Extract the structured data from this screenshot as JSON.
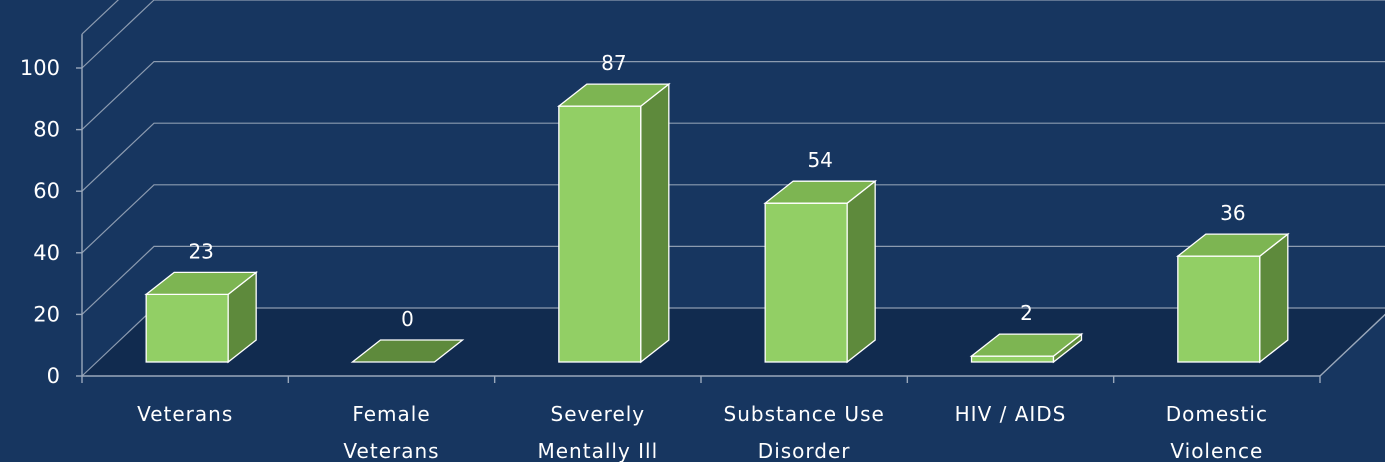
{
  "chart_data": {
    "type": "bar",
    "categories": [
      [
        "Veterans"
      ],
      [
        "Female",
        "Veterans"
      ],
      [
        "Severely",
        "Mentally Ill"
      ],
      [
        "Substance Use",
        "Disorder"
      ],
      [
        "HIV / AIDS"
      ],
      [
        "Domestic",
        "Violence"
      ]
    ],
    "values": [
      23,
      0,
      87,
      54,
      2,
      36
    ],
    "data_labels": [
      "23",
      "0",
      "87",
      "54",
      "2",
      "36"
    ],
    "ylim": [
      0,
      100
    ],
    "yticks": [
      "0",
      "20",
      "40",
      "60",
      "80",
      "100"
    ],
    "grid": true,
    "style": "3d-column",
    "colors": {
      "background": "#173660",
      "bar_front": "#92cf65",
      "bar_side": "#5e8a3c",
      "bar_top": "#7db552",
      "bar_stroke": "#ffffff",
      "grid": "#8c9bb0",
      "floor": "#0d2341"
    }
  }
}
